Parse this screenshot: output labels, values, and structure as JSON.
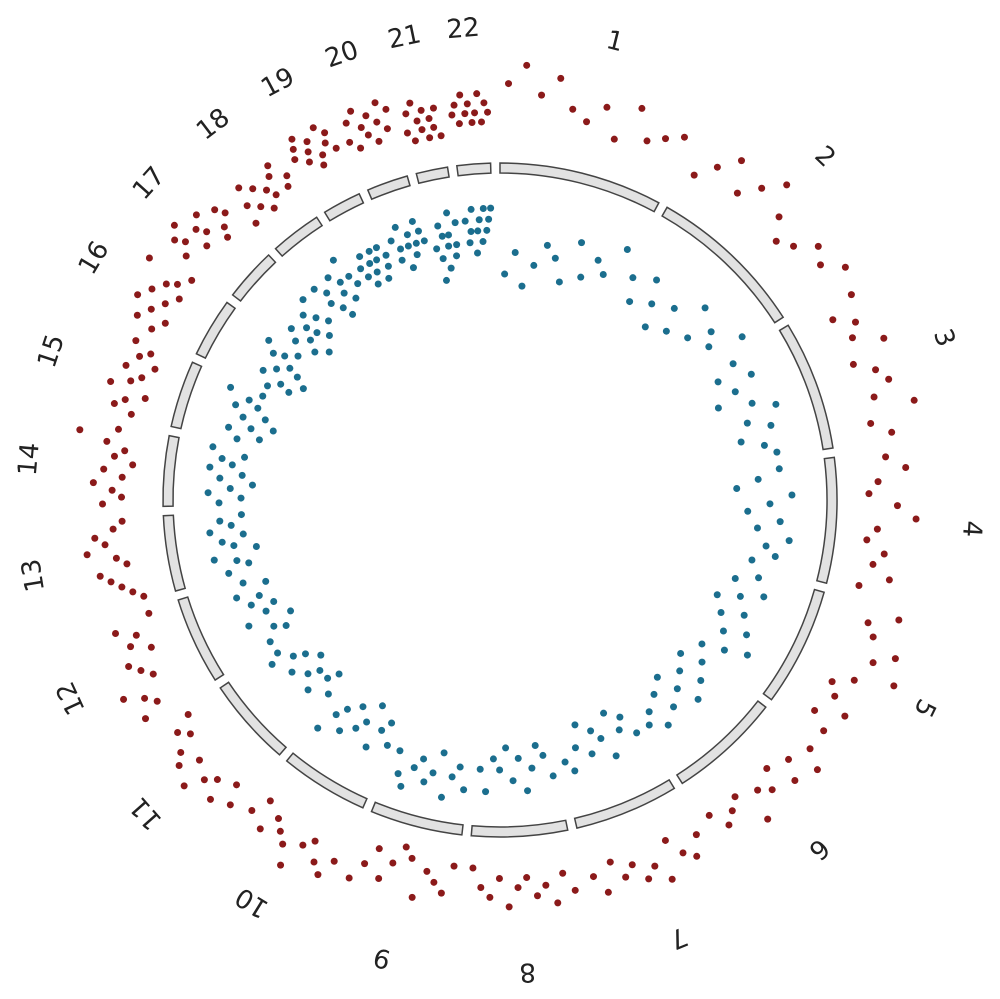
{
  "chart_data": {
    "type": "circular_manhattan",
    "categories": [
      "1",
      "2",
      "3",
      "4",
      "5",
      "6",
      "7",
      "8",
      "9",
      "10",
      "11",
      "12",
      "13",
      "14",
      "15",
      "16",
      "17",
      "18",
      "19",
      "20",
      "21",
      "22"
    ],
    "lengths": [
      249,
      243,
      198,
      191,
      181,
      171,
      159,
      146,
      141,
      135,
      135,
      133,
      115,
      107,
      102,
      90,
      81,
      78,
      59,
      63,
      48,
      51
    ],
    "series": [
      {
        "color": "#8b1a1a",
        "values": [
          [
            7,
            9,
            6,
            8,
            5,
            4,
            6,
            3,
            7,
            4,
            5,
            6
          ],
          [
            3,
            5,
            7,
            4,
            6,
            8,
            5,
            3,
            4,
            6,
            5,
            7
          ],
          [
            6,
            3,
            5,
            4,
            7,
            3,
            5,
            6,
            4,
            8,
            3,
            5
          ],
          [
            4,
            6,
            3,
            2,
            5,
            7,
            3,
            2,
            4,
            3,
            5,
            2
          ],
          [
            7,
            4,
            5,
            8,
            6,
            9,
            5,
            3,
            4,
            6,
            3,
            5
          ],
          [
            5,
            7,
            4,
            6,
            3,
            5,
            4,
            7,
            3,
            4,
            5,
            3
          ],
          [
            4,
            6,
            5,
            3,
            7,
            5,
            6,
            4,
            5,
            3,
            6,
            4
          ],
          [
            5,
            3,
            6,
            4,
            5,
            3,
            4,
            6,
            3,
            5,
            4,
            2
          ],
          [
            2,
            5,
            4,
            3,
            6,
            2,
            1,
            3,
            5,
            2,
            4,
            6
          ],
          [
            5,
            7,
            6,
            4,
            5,
            8,
            6,
            5,
            4,
            6,
            3,
            5
          ],
          [
            6,
            4,
            7,
            5,
            6,
            8,
            5,
            7,
            6,
            4,
            5,
            3
          ],
          [
            7,
            5,
            6,
            8,
            4,
            5,
            6,
            3,
            5,
            4,
            6,
            2
          ],
          [
            2,
            3,
            4,
            5,
            6,
            3,
            4,
            7,
            5,
            6,
            4,
            3
          ],
          [
            5,
            3,
            4,
            6,
            3,
            5,
            2,
            4,
            3,
            5,
            8,
            4
          ],
          [
            3,
            5,
            4,
            2,
            6,
            4,
            3,
            5,
            2,
            4,
            3,
            5
          ],
          [
            4,
            6,
            3,
            5,
            7,
            4,
            6,
            3,
            5,
            4,
            8,
            3
          ],
          [
            5,
            7,
            6,
            8,
            4,
            6,
            5,
            7,
            3,
            4,
            6,
            5
          ],
          [
            2,
            4,
            6,
            3,
            5,
            2,
            4,
            3,
            5,
            6,
            3,
            4
          ],
          [
            5,
            6,
            7,
            4,
            5,
            6,
            3,
            4,
            7,
            5,
            6,
            4
          ],
          [
            4,
            6,
            3,
            7,
            5,
            4,
            6,
            3,
            5,
            7,
            4,
            6
          ],
          [
            3,
            5,
            2,
            6,
            4,
            3,
            5,
            2,
            4,
            3,
            5,
            2
          ],
          [
            4,
            5,
            3,
            6,
            4,
            5,
            3,
            4,
            6,
            3,
            5,
            4
          ]
        ]
      },
      {
        "color": "#1b6e8e",
        "values": [
          [
            8,
            6,
            9,
            7,
            5,
            6,
            8,
            4,
            7,
            5,
            6,
            3
          ],
          [
            5,
            7,
            4,
            6,
            8,
            5,
            7,
            3,
            6,
            4,
            5,
            2
          ],
          [
            4,
            6,
            3,
            5,
            7,
            4,
            2,
            5,
            3,
            6,
            4,
            3
          ],
          [
            3,
            5,
            7,
            2,
            4,
            6,
            3,
            5,
            2,
            4,
            3,
            5
          ],
          [
            4,
            6,
            3,
            5,
            7,
            4,
            6,
            3,
            5,
            2,
            4,
            6
          ],
          [
            5,
            7,
            4,
            6,
            3,
            5,
            7,
            4,
            6,
            3,
            5,
            4
          ],
          [
            4,
            6,
            5,
            7,
            3,
            5,
            6,
            4,
            7,
            5,
            3,
            4
          ],
          [
            3,
            5,
            6,
            4,
            2,
            5,
            3,
            6,
            4,
            5,
            2,
            4
          ],
          [
            2,
            4,
            3,
            1,
            5,
            3,
            2,
            4,
            3,
            1,
            2,
            4
          ],
          [
            4,
            6,
            5,
            3,
            7,
            5,
            4,
            6,
            3,
            5,
            4,
            2
          ],
          [
            5,
            7,
            6,
            4,
            6,
            5,
            7,
            4,
            6,
            5,
            3,
            4
          ],
          [
            4,
            6,
            5,
            7,
            3,
            5,
            6,
            4,
            5,
            3,
            6,
            4
          ],
          [
            3,
            5,
            4,
            2,
            6,
            4,
            3,
            5,
            2,
            4,
            3,
            5
          ],
          [
            3,
            5,
            2,
            4,
            6,
            3,
            5,
            2,
            4,
            3,
            5,
            2
          ],
          [
            4,
            6,
            3,
            5,
            7,
            4,
            6,
            3,
            5,
            4,
            2,
            5
          ],
          [
            5,
            7,
            6,
            4,
            8,
            5,
            7,
            6,
            4,
            5,
            3,
            6
          ],
          [
            5,
            7,
            4,
            6,
            8,
            5,
            6,
            4,
            7,
            5,
            3,
            6
          ],
          [
            3,
            5,
            4,
            6,
            7,
            3,
            5,
            4,
            6,
            2,
            4,
            5
          ],
          [
            4,
            5,
            3,
            6,
            4,
            5,
            3,
            4,
            6,
            3,
            5,
            4
          ],
          [
            3,
            5,
            4,
            2,
            6,
            4,
            3,
            5,
            4,
            2,
            3,
            4
          ],
          [
            5,
            8,
            6,
            3,
            4,
            7,
            5,
            4,
            2,
            6,
            5,
            3
          ],
          [
            3,
            5,
            4,
            2,
            6,
            4,
            3,
            5,
            2,
            4,
            3,
            2
          ]
        ]
      }
    ]
  }
}
